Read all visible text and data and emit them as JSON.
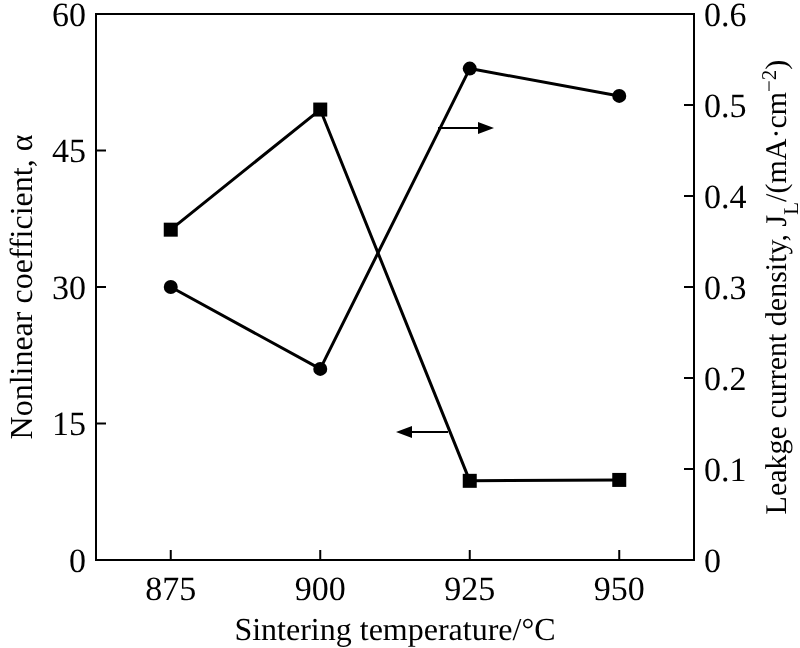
{
  "chart_data": {
    "type": "line",
    "xlabel": "Sintering temperature/°C",
    "ylabel": "Nonlinear coefficient, α",
    "y2label": "Leakge current density, J$_{L}$/(mA·cm$^{−2}$)",
    "x": [
      875,
      900,
      925,
      950
    ],
    "xlim": [
      862.5,
      962.5
    ],
    "xticks": [
      875,
      900,
      925,
      950
    ],
    "ylim": [
      0,
      60
    ],
    "yticks": [
      0,
      15,
      30,
      45,
      60
    ],
    "y2lim": [
      0,
      0.6
    ],
    "y2ticks": [
      {
        "value": 0,
        "label": "0"
      },
      0.1,
      0.2,
      0.3,
      0.4,
      0.5,
      0.6
    ],
    "series": [
      {
        "color": "#000000",
        "marker": "square",
        "values": [
          36.3,
          49.5,
          8.7,
          8.8
        ]
      },
      {
        "color": "#000000",
        "marker": "circle",
        "axis": "y2",
        "values": [
          0.3,
          0.21,
          0.54,
          0.51
        ]
      }
    ],
    "line_style": "solid"
  }
}
